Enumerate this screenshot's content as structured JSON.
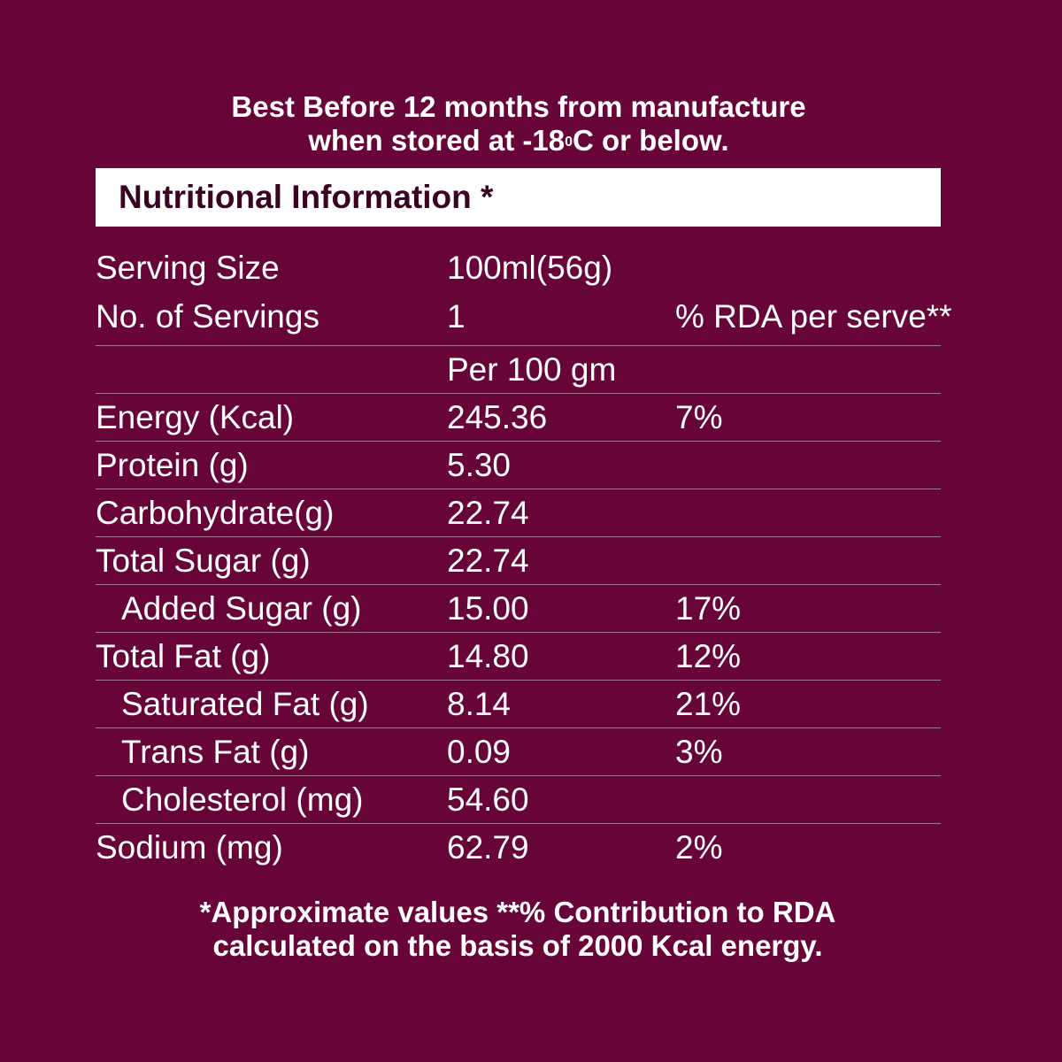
{
  "best_before": {
    "line1": "Best Before 12 months from manufacture",
    "line2_prefix": "when stored at -18",
    "line2_sup": "0",
    "line2_suffix": "C or below."
  },
  "header": {
    "title": "Nutritional Information *"
  },
  "serving": {
    "size_label": "Serving Size",
    "size_value": "100ml(56g)",
    "count_label": "No. of Servings",
    "count_value": "1",
    "rda_header": "% RDA per serve**"
  },
  "table": {
    "subheader": "Per 100 gm",
    "rows": [
      {
        "name": "Energy (Kcal)",
        "value": "245.36",
        "rda": "7%"
      },
      {
        "name": "Protein (g)",
        "value": "5.30",
        "rda": ""
      },
      {
        "name": "Carbohydrate(g)",
        "value": "22.74",
        "rda": ""
      },
      {
        "name": "Total Sugar (g)",
        "value": "22.74",
        "rda": ""
      },
      {
        "name": "Added Sugar (g)",
        "value": "15.00",
        "rda": "17%"
      },
      {
        "name": "Total Fat (g)",
        "value": "14.80",
        "rda": "12%"
      },
      {
        "name": "Saturated Fat (g)",
        "value": "8.14",
        "rda": "21%"
      },
      {
        "name": "Trans Fat (g)",
        "value": "0.09",
        "rda": "3%"
      },
      {
        "name": "Cholesterol (mg)",
        "value": "54.60",
        "rda": ""
      },
      {
        "name": "Sodium (mg)",
        "value": "62.79",
        "rda": "2%"
      }
    ]
  },
  "footnote": {
    "line1": "*Approximate values **% Contribution to RDA",
    "line2": "calculated on the basis of 2000 Kcal energy."
  },
  "colors": {
    "background": "#680538",
    "header_text": "#3a0322",
    "divider": "#a67891"
  }
}
